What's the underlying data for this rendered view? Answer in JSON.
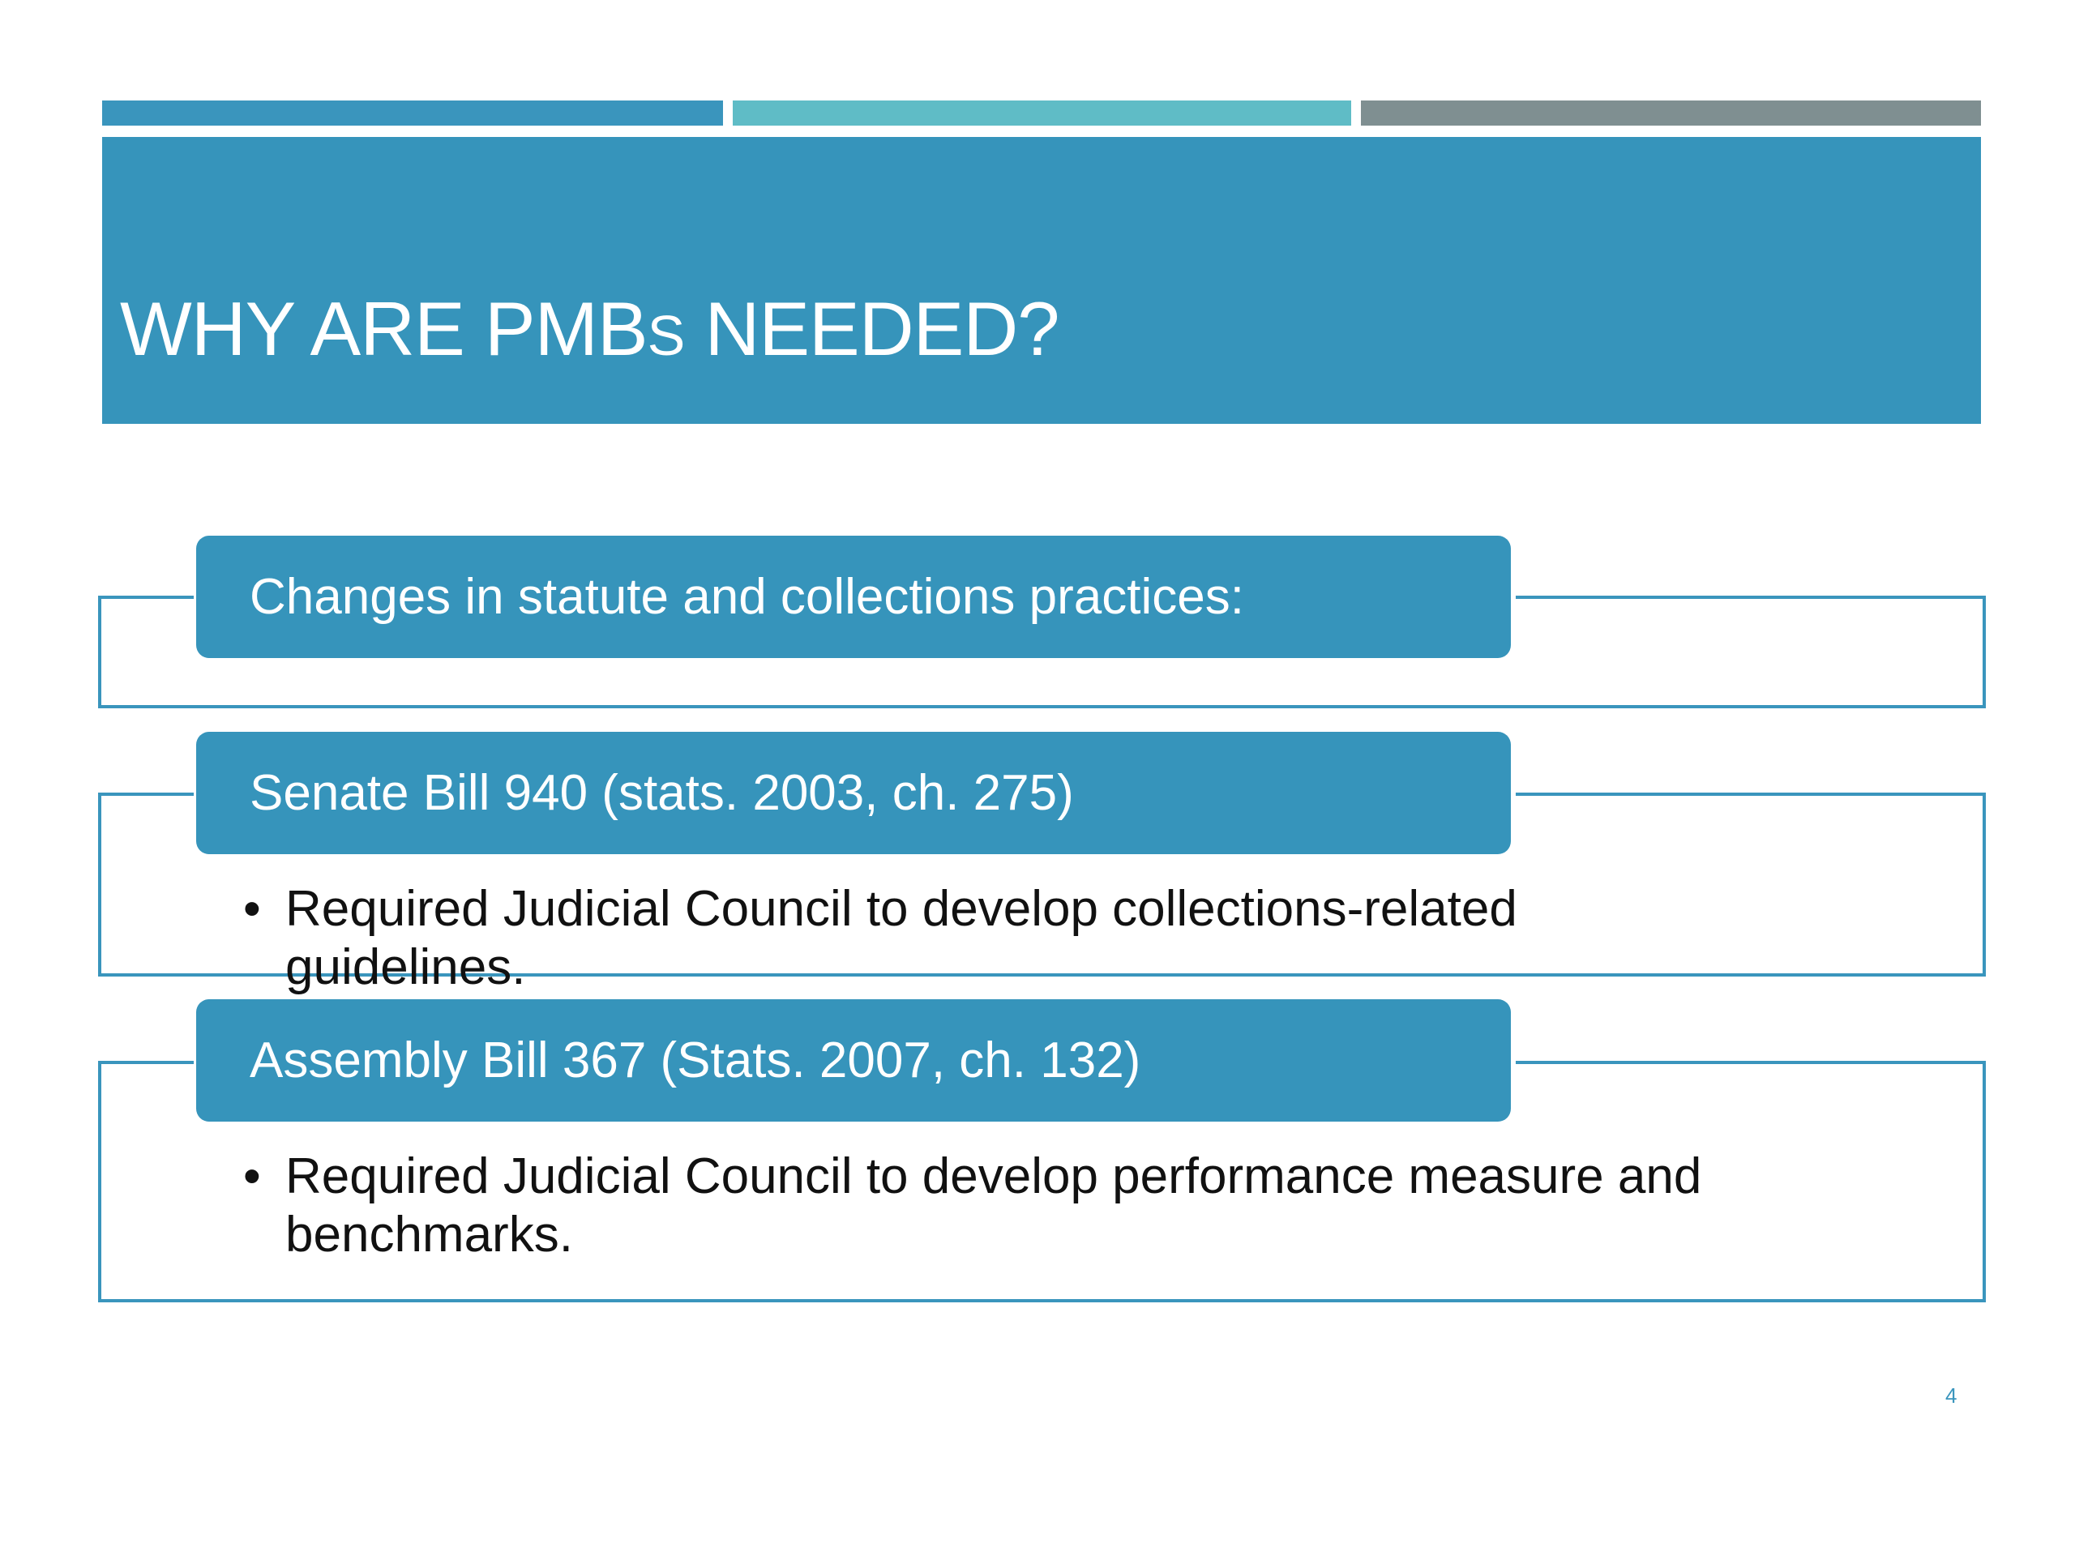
{
  "slide": {
    "title_main": "WHY ARE PMB",
    "title_small": "S",
    "title_end": " NEEDED?",
    "page_number": "4"
  },
  "sections": [
    {
      "heading": "Changes in statute and collections practices:",
      "bullets": []
    },
    {
      "heading": "Senate Bill 940 (stats. 2003, ch. 275)",
      "bullets": [
        "Required Judicial Council to develop collections-related guidelines."
      ]
    },
    {
      "heading": "Assembly Bill 367 (Stats. 2007, ch. 132)",
      "bullets": [
        "Required Judicial Council to develop performance measure and benchmarks."
      ]
    }
  ],
  "bullet_glyph": "•",
  "colors": {
    "primary": "#3694bb",
    "accent_teal": "#5fbcc6",
    "accent_gray": "#7f8f91"
  }
}
